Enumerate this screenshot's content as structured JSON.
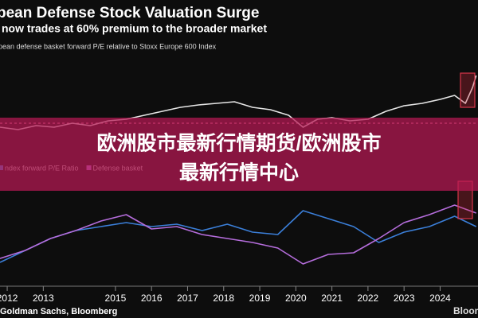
{
  "chart_data": [
    {
      "type": "line",
      "title": "pean Defense Stock Valuation Surge",
      "subtitle": "now trades at 60% premium to the broader market",
      "caption": "pean defense basket forward P/E relative to Stoxx Europe 600 Index",
      "xlim": [
        2011.8,
        2025.05
      ],
      "ylim": [
        0,
        100
      ],
      "reference_line": 37.5,
      "series": [
        {
          "name": null,
          "color": "#e6e6e6",
          "x": [
            2011.8,
            2012.3,
            2012.8,
            2013.3,
            2013.8,
            2014.3,
            2014.8,
            2015.3,
            2015.8,
            2016.3,
            2016.8,
            2017.3,
            2017.8,
            2018.3,
            2018.8,
            2019.3,
            2019.8,
            2020.2,
            2020.6,
            2021.0,
            2021.5,
            2022.0,
            2022.5,
            2023.0,
            2023.5,
            2024.0,
            2024.4,
            2024.7,
            2024.9,
            2025.0
          ],
          "values": [
            33.3,
            30.8,
            35,
            33.3,
            37.5,
            35,
            40,
            41.7,
            45.8,
            50,
            54.2,
            56.7,
            58.3,
            60,
            54.2,
            51.7,
            45.8,
            33.3,
            41.7,
            43.3,
            40,
            41.7,
            50,
            55.8,
            58.3,
            62.5,
            66.7,
            58.3,
            75,
            87.5
          ]
        }
      ]
    },
    {
      "type": "line",
      "xlim": [
        2011.8,
        2025.05
      ],
      "ylim": [
        0,
        100
      ],
      "xticks": [
        {
          "value": 2012,
          "label": "2012"
        },
        {
          "value": 2013,
          "label": "2013"
        },
        {
          "value": 2015,
          "label": "2015"
        },
        {
          "value": 2016,
          "label": "2016"
        },
        {
          "value": 2017,
          "label": "2017"
        },
        {
          "value": 2018,
          "label": "2018"
        },
        {
          "value": 2019,
          "label": "2019"
        },
        {
          "value": 2020,
          "label": "2020"
        },
        {
          "value": 2021,
          "label": "2021"
        },
        {
          "value": 2022,
          "label": "2022"
        },
        {
          "value": 2023,
          "label": "2023"
        },
        {
          "value": 2024,
          "label": "2024"
        }
      ],
      "series": [
        {
          "name": "ndex forward P/E Ratio",
          "color": "#3b7fd9",
          "x": [
            2011.8,
            2012.5,
            2013.2,
            2013.9,
            2014.6,
            2015.3,
            2016.0,
            2016.7,
            2017.4,
            2018.1,
            2018.8,
            2019.5,
            2020.2,
            2020.9,
            2021.6,
            2022.3,
            2023.0,
            2023.7,
            2024.4,
            2025.0
          ],
          "values": [
            14.3,
            28.6,
            42.9,
            52.4,
            57.1,
            61.9,
            57.1,
            60,
            52.4,
            60,
            50.5,
            47.6,
            76.2,
            66.7,
            57.1,
            38.1,
            50.5,
            57.1,
            69.5,
            57.1
          ]
        },
        {
          "name": "Defense basket",
          "color": "#b56ddc",
          "x": [
            2011.8,
            2012.5,
            2013.2,
            2013.9,
            2014.6,
            2015.3,
            2016.0,
            2016.7,
            2017.4,
            2018.1,
            2018.8,
            2019.5,
            2020.2,
            2020.9,
            2021.6,
            2022.3,
            2023.0,
            2023.7,
            2024.4,
            2025.0
          ],
          "values": [
            19,
            28.6,
            42.9,
            52.4,
            63.8,
            71.4,
            54.3,
            57.1,
            47.6,
            42.9,
            38.1,
            31.4,
            12.4,
            23.8,
            25.7,
            42.9,
            61.9,
            71.4,
            82.9,
            73.3
          ]
        }
      ]
    }
  ],
  "banner": {
    "lines": [
      "欧洲股市最新行情期货/欧洲股市",
      "最新行情中心"
    ]
  },
  "footer": {
    "source": "Goldman Sachs, Bloomberg",
    "logo": "Bloom"
  }
}
